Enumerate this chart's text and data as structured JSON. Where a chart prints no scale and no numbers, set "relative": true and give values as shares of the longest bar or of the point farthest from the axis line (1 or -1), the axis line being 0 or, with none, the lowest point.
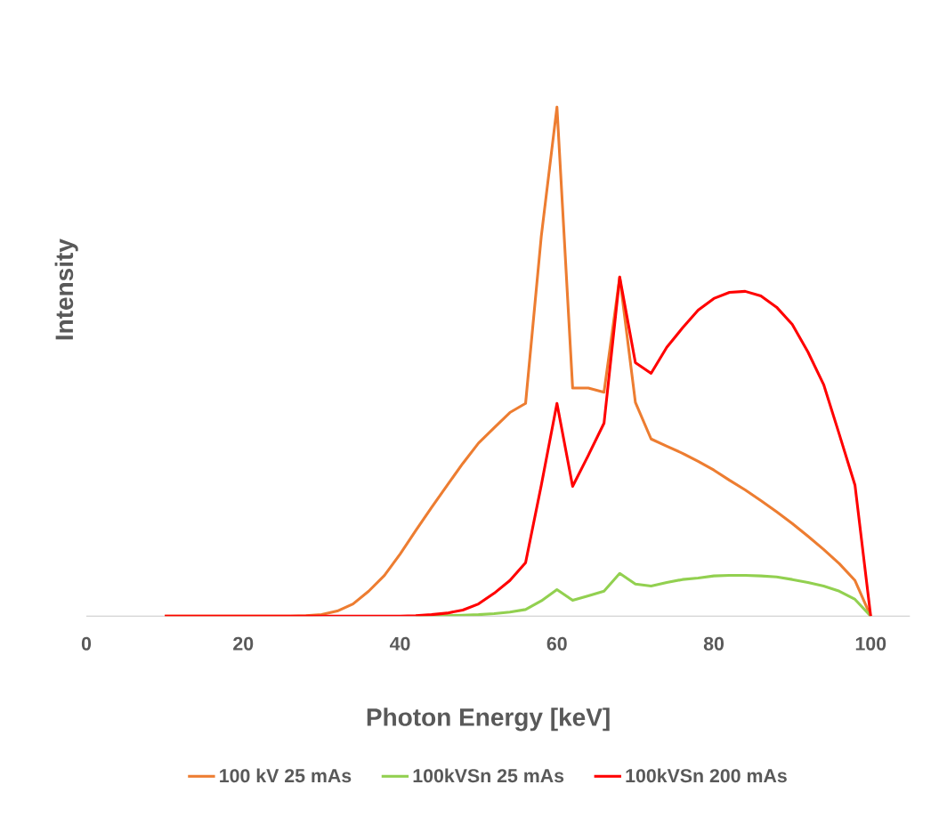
{
  "chart_data": {
    "type": "line",
    "relative": true,
    "xlabel": "Photon Energy [keV]",
    "ylabel": "Intensity",
    "x": [
      10,
      12,
      14,
      16,
      18,
      20,
      22,
      24,
      26,
      28,
      30,
      32,
      34,
      36,
      38,
      40,
      42,
      44,
      46,
      48,
      50,
      52,
      54,
      56,
      58,
      60,
      62,
      64,
      66,
      68,
      70,
      72,
      74,
      76,
      78,
      80,
      82,
      84,
      86,
      88,
      90,
      92,
      94,
      96,
      98,
      100
    ],
    "xlim": [
      0,
      105
    ],
    "xticks": [
      0,
      20,
      40,
      60,
      80,
      100
    ],
    "legend": "bottom",
    "line_style": "solid",
    "series": [
      {
        "name": "100 kV 25 mAs",
        "color": "#ed7d31",
        "values": [
          0,
          0,
          0,
          0,
          0,
          0,
          0,
          0,
          0,
          0.001,
          0.003,
          0.01,
          0.024,
          0.049,
          0.08,
          0.122,
          0.168,
          0.213,
          0.257,
          0.3,
          0.34,
          0.37,
          0.4,
          0.418,
          0.746,
          1,
          0.448,
          0.448,
          0.44,
          0.666,
          0.42,
          0.348,
          0.334,
          0.32,
          0.304,
          0.287,
          0.267,
          0.248,
          0.227,
          0.205,
          0.182,
          0.157,
          0.131,
          0.103,
          0.07,
          0
        ]
      },
      {
        "name": "100kVSn 25 mAs",
        "color": "#92d050",
        "values": [
          null,
          null,
          null,
          null,
          null,
          null,
          null,
          null,
          null,
          null,
          null,
          null,
          null,
          null,
          null,
          null,
          0,
          0,
          0.001,
          0.002,
          0.003,
          0.005,
          0.008,
          0.013,
          0.03,
          0.052,
          0.031,
          0.04,
          0.049,
          0.084,
          0.063,
          0.059,
          0.066,
          0.072,
          0.075,
          0.079,
          0.08,
          0.08,
          0.079,
          0.077,
          0.072,
          0.066,
          0.059,
          0.049,
          0.033,
          0
        ]
      },
      {
        "name": "100kVSn 200 mAs",
        "color": "#ff0000",
        "values": [
          0,
          0,
          0,
          0,
          0,
          0,
          0,
          0,
          0,
          0,
          0,
          0,
          0,
          0,
          0,
          0,
          0.001,
          0.003,
          0.006,
          0.012,
          0.024,
          0.045,
          0.07,
          0.105,
          0.257,
          0.418,
          0.255,
          0.316,
          0.379,
          0.666,
          0.498,
          0.477,
          0.528,
          0.566,
          0.601,
          0.624,
          0.636,
          0.638,
          0.629,
          0.607,
          0.573,
          0.519,
          0.455,
          0.357,
          0.257,
          0
        ]
      }
    ]
  }
}
